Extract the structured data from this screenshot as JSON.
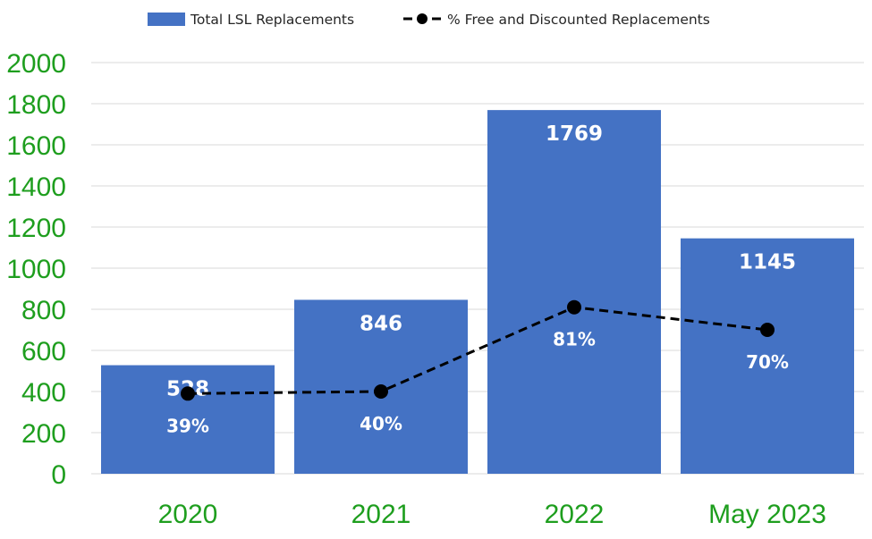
{
  "chart_data": {
    "type": "bar",
    "categories": [
      "2020",
      "2021",
      "2022",
      "May 2023"
    ],
    "series": [
      {
        "name": "Total LSL Replacements",
        "kind": "bar",
        "values": [
          528,
          846,
          1769,
          1145
        ],
        "data_labels": [
          "528",
          "846",
          "1769",
          "1145"
        ],
        "color": "#4472C4"
      },
      {
        "name": "% Free and Discounted Replacements",
        "kind": "line",
        "style": "dashed-with-markers",
        "values": [
          39,
          40,
          81,
          70
        ],
        "data_labels": [
          "39%",
          "40%",
          "81%",
          "70%"
        ],
        "color": "#000000"
      }
    ],
    "ylim": [
      0,
      2000
    ],
    "yticks": [
      "0",
      "200",
      "400",
      "600",
      "800",
      "1000",
      "1200",
      "1400",
      "1600",
      "1800",
      "2000"
    ],
    "grid": true,
    "legend_position": "top",
    "colors": {
      "bar": "#4472C4",
      "line": "#000000",
      "tick_labels": "#1E9E1E",
      "grid": "#D9D9D9",
      "data_labels": "#FFFFFF"
    }
  }
}
